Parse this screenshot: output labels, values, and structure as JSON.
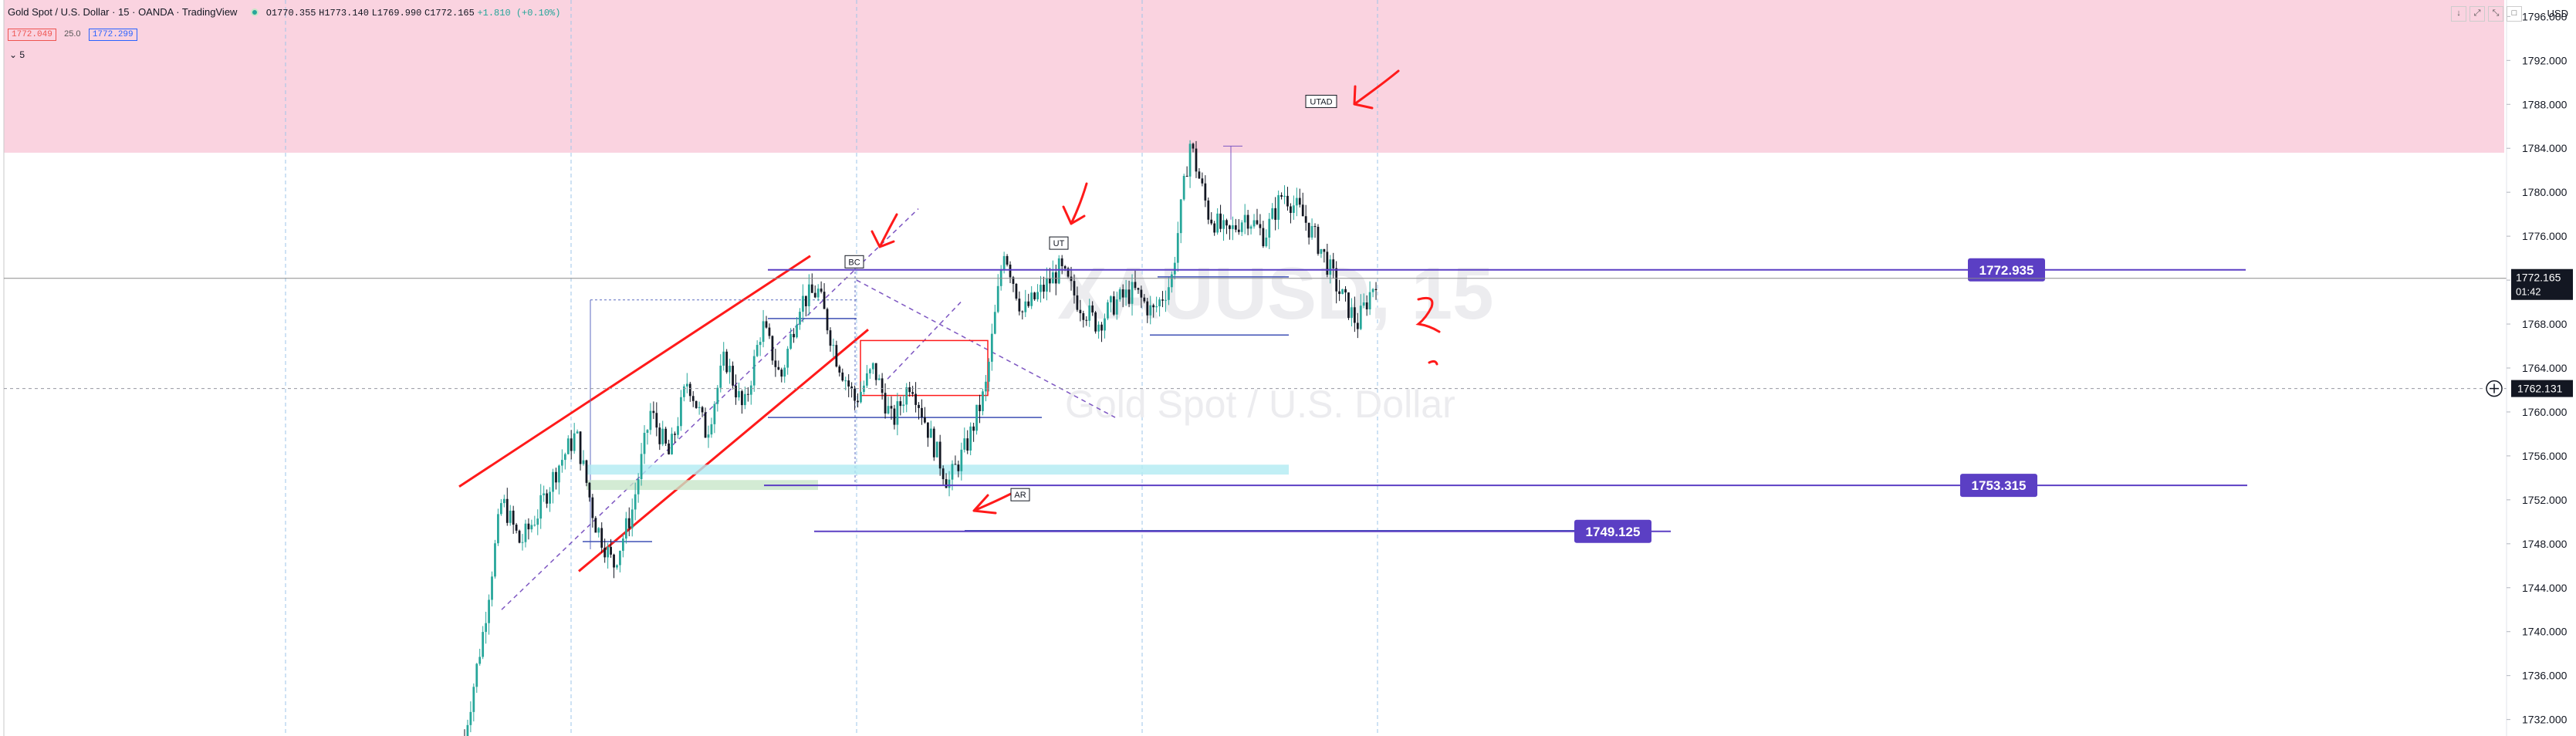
{
  "header": {
    "title": "Gold Spot / U.S. Dollar · 15 · OANDA · TradingView",
    "open": "O1770.355",
    "high": "H1773.140",
    "low": "L1769.990",
    "close": "C1772.165",
    "change": "+1.810 (+0.10%)",
    "sell_price": "1772.049",
    "spread": "25.0",
    "buy_price": "1772.299",
    "indicator_row": "5",
    "currency": "USD",
    "status_color": "#26a69a"
  },
  "toolbar": {
    "icons": [
      "arrow-down-icon",
      "expand-icon",
      "collapse-icon",
      "close-icon"
    ]
  },
  "chart_data": {
    "type": "candlestick",
    "symbol": "XAUUSD",
    "watermark": {
      "symbol": "XAUUSD, 15",
      "name": "Gold Spot / U.S. Dollar"
    },
    "y_axis": {
      "range": [
        1730.5,
        1797.5
      ],
      "ticks": [
        1732,
        1736,
        1740,
        1744,
        1748,
        1752,
        1756,
        1760,
        1764,
        1768,
        1772,
        1776,
        1780,
        1784,
        1788,
        1792,
        1796
      ],
      "tick_labels": [
        "1732.000",
        "1736.000",
        "1740.000",
        "1744.000",
        "1748.000",
        "1752.000",
        "1756.000",
        "1760.000",
        "1764.000",
        "1768.000",
        "1772.000",
        "1776.000",
        "1780.000",
        "1784.000",
        "1788.000",
        "1792.000",
        "1796.000"
      ]
    },
    "last_price": {
      "value": 1772.165,
      "label": "1772.165",
      "countdown": "01:42"
    },
    "crosshair_price": {
      "value": 1762.131,
      "label": "1762.131"
    },
    "supply_zone": {
      "low": 1783.6,
      "high": 1797.5,
      "color": "#f8bbd0"
    },
    "levels": [
      {
        "value": 1772.935,
        "label": "1772.935",
        "color": "#5b3fc4"
      },
      {
        "value": 1753.315,
        "label": "1753.315",
        "color": "#5b3fc4"
      },
      {
        "value": 1749.125,
        "label": "1749.125",
        "color": "#5b3fc4"
      }
    ],
    "annotations": [
      {
        "text": "UTAD",
        "price": 1788.2
      },
      {
        "text": "UT",
        "price": 1775.3
      },
      {
        "text": "BC",
        "price": 1773.6
      },
      {
        "text": "AR",
        "price": 1752.4
      }
    ],
    "price_path": [
      1730.5,
      1740,
      1752,
      1748,
      1751,
      1755,
      1758,
      1750,
      1746,
      1751,
      1760,
      1756,
      1763,
      1758,
      1765,
      1760,
      1768,
      1763,
      1770,
      1771,
      1765,
      1761,
      1764,
      1759,
      1763,
      1758,
      1753.5,
      1757,
      1762,
      1775,
      1769,
      1771,
      1773,
      1770,
      1768,
      1770,
      1771,
      1769,
      1772,
      1784.5,
      1778,
      1776,
      1778,
      1776,
      1780,
      1778,
      1775,
      1771,
      1768,
      1772.165
    ],
    "colors": {
      "up": "#26a69a",
      "down": "#131722",
      "grid": "#9ec5e8"
    }
  }
}
